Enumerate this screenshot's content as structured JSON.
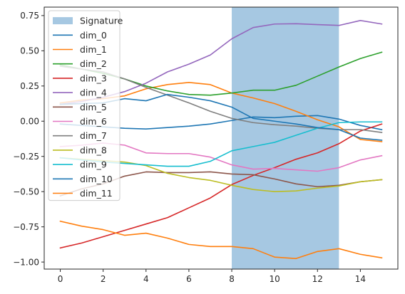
{
  "chart_data": {
    "type": "line",
    "title": "",
    "xlabel": "",
    "ylabel": "",
    "xlim": [
      -0.75,
      15.75
    ],
    "ylim": [
      -1.05,
      0.81
    ],
    "x_ticks": [
      0,
      2,
      4,
      6,
      8,
      10,
      12,
      14
    ],
    "y_ticks": [
      0.75,
      0.5,
      0.25,
      0.0,
      -0.25,
      -0.5,
      -0.75,
      -1.0
    ],
    "x_tick_labels": [
      "0",
      "2",
      "4",
      "6",
      "8",
      "10",
      "12",
      "14"
    ],
    "y_tick_labels": [
      "0.75",
      "0.50",
      "0.25",
      "0.00",
      "−0.25",
      "−0.50",
      "−0.75",
      "−1.00"
    ],
    "grid": false,
    "legend_placement": "upper-left",
    "shaded_region": {
      "label": "Signature",
      "x_start": 8,
      "x_end": 13,
      "color": "#a6c8e2"
    },
    "x": [
      0,
      1,
      2,
      3,
      4,
      5,
      6,
      7,
      8,
      9,
      10,
      11,
      12,
      13,
      14,
      15
    ],
    "series": [
      {
        "name": "dim_0",
        "color": "#1f77b4",
        "values": [
          -0.02,
          -0.03,
          -0.04,
          -0.05,
          -0.055,
          -0.045,
          -0.035,
          -0.02,
          0.005,
          0.03,
          0.025,
          0.035,
          0.04,
          0.015,
          -0.03,
          -0.06
        ]
      },
      {
        "name": "dim_1",
        "color": "#ff7f0e",
        "values": [
          0.13,
          0.15,
          0.16,
          0.18,
          0.23,
          0.26,
          0.275,
          0.26,
          0.2,
          0.165,
          0.125,
          0.07,
          0.01,
          -0.04,
          -0.13,
          -0.145
        ]
      },
      {
        "name": "dim_2",
        "color": "#2ca02c",
        "values": [
          0.4,
          0.37,
          0.34,
          0.3,
          0.25,
          0.215,
          0.19,
          0.185,
          0.2,
          0.22,
          0.22,
          0.255,
          0.32,
          0.385,
          0.445,
          0.49
        ]
      },
      {
        "name": "dim_3",
        "color": "#d62728",
        "values": [
          -0.9,
          -0.865,
          -0.82,
          -0.775,
          -0.73,
          -0.685,
          -0.615,
          -0.545,
          -0.45,
          -0.385,
          -0.33,
          -0.27,
          -0.225,
          -0.16,
          -0.07,
          -0.02
        ]
      },
      {
        "name": "dim_4",
        "color": "#9467bd",
        "values": [
          0.12,
          0.14,
          0.17,
          0.21,
          0.27,
          0.35,
          0.405,
          0.47,
          0.585,
          0.665,
          0.69,
          0.692,
          0.686,
          0.68,
          0.715,
          0.69
        ]
      },
      {
        "name": "dim_5",
        "color": "#8c564b",
        "values": [
          -0.53,
          -0.48,
          -0.445,
          -0.39,
          -0.36,
          -0.365,
          -0.365,
          -0.36,
          -0.375,
          -0.38,
          -0.41,
          -0.445,
          -0.465,
          -0.455,
          -0.43,
          -0.415
        ]
      },
      {
        "name": "dim_6",
        "color": "#e377c2",
        "values": [
          -0.18,
          -0.17,
          -0.155,
          -0.17,
          -0.225,
          -0.23,
          -0.23,
          -0.255,
          -0.31,
          -0.34,
          -0.335,
          -0.345,
          -0.355,
          -0.33,
          -0.275,
          -0.245
        ]
      },
      {
        "name": "dim_7",
        "color": "#7f7f7f",
        "values": [
          0.39,
          0.37,
          0.35,
          0.3,
          0.24,
          0.185,
          0.13,
          0.07,
          0.02,
          -0.01,
          -0.025,
          -0.035,
          -0.05,
          -0.06,
          -0.06,
          -0.08
        ]
      },
      {
        "name": "dim_8",
        "color": "#bcbd22",
        "values": [
          -0.26,
          -0.27,
          -0.28,
          -0.29,
          -0.315,
          -0.37,
          -0.4,
          -0.42,
          -0.455,
          -0.485,
          -0.5,
          -0.495,
          -0.475,
          -0.46,
          -0.43,
          -0.415
        ]
      },
      {
        "name": "dim_9",
        "color": "#17becf",
        "values": [
          -0.26,
          -0.275,
          -0.29,
          -0.3,
          -0.31,
          -0.32,
          -0.32,
          -0.285,
          -0.21,
          -0.18,
          -0.15,
          -0.1,
          -0.05,
          -0.01,
          -0.005,
          -0.005
        ]
      },
      {
        "name": "dim_10",
        "color": "#1f77b4",
        "values": [
          0.12,
          0.125,
          0.13,
          0.16,
          0.145,
          0.19,
          0.17,
          0.145,
          0.1,
          0.02,
          0.0,
          -0.02,
          -0.045,
          -0.06,
          -0.12,
          -0.135
        ]
      },
      {
        "name": "dim_11",
        "color": "#ff7f0e",
        "values": [
          -0.71,
          -0.745,
          -0.77,
          -0.81,
          -0.795,
          -0.83,
          -0.875,
          -0.89,
          -0.89,
          -0.905,
          -0.965,
          -0.975,
          -0.925,
          -0.905,
          -0.945,
          -0.97
        ]
      }
    ]
  }
}
